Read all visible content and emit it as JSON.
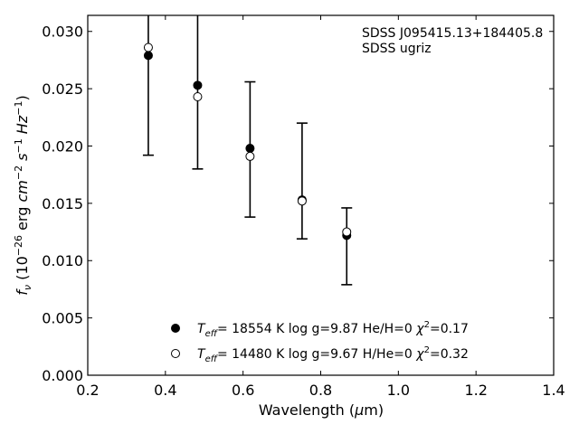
{
  "chart_data": {
    "type": "scatter",
    "xlabel": "Wavelength (μm)",
    "ylabel": "f_ν (10^−26 erg cm^−2 s^−1 Hz^−1)",
    "xlim": [
      0.2,
      1.4
    ],
    "ylim": [
      0.0,
      0.0314
    ],
    "xticks": [
      0.2,
      0.4,
      0.6,
      0.8,
      1.0,
      1.2,
      1.4
    ],
    "xtick_labels": [
      "0.2",
      "0.4",
      "0.6",
      "0.8",
      "1.0",
      "1.2",
      "1.4"
    ],
    "yticks": [
      0.0,
      0.005,
      0.01,
      0.015,
      0.02,
      0.025,
      0.03
    ],
    "ytick_labels": [
      "0.000",
      "0.005",
      "0.010",
      "0.015",
      "0.020",
      "0.025",
      "0.030"
    ],
    "grid": false,
    "legend_position": "bottom-center",
    "annotations": [
      "SDSS J095415.13+184405.8",
      "SDSS ugriz"
    ],
    "observed": {
      "x": [
        0.356,
        0.483,
        0.618,
        0.752,
        0.867
      ],
      "y_lower": [
        0.0192,
        0.018,
        0.0138,
        0.0119,
        0.0079
      ],
      "y_upper": [
        0.0314,
        0.0314,
        0.0256,
        0.022,
        0.0146
      ]
    },
    "series": [
      {
        "name": "T_eff= 18554 K  log g=9.87  He/H=0  χ²=0.17",
        "marker": "filled-circle",
        "x": [
          0.356,
          0.483,
          0.618,
          0.752,
          0.867
        ],
        "y": [
          0.0279,
          0.0253,
          0.0198,
          0.0153,
          0.0122
        ]
      },
      {
        "name": "T_eff= 14480 K  log g=9.67  H/He=0  χ²=0.32",
        "marker": "open-circle",
        "x": [
          0.356,
          0.483,
          0.618,
          0.752,
          0.867
        ],
        "y": [
          0.0286,
          0.0243,
          0.0191,
          0.0152,
          0.0125
        ]
      }
    ],
    "legend": [
      {
        "teff": "18554",
        "logg": "9.87",
        "comp": "He/H=0",
        "chi2": "0.17"
      },
      {
        "teff": "14480",
        "logg": "9.67",
        "comp": "H/He=0",
        "chi2": "0.32"
      }
    ]
  }
}
